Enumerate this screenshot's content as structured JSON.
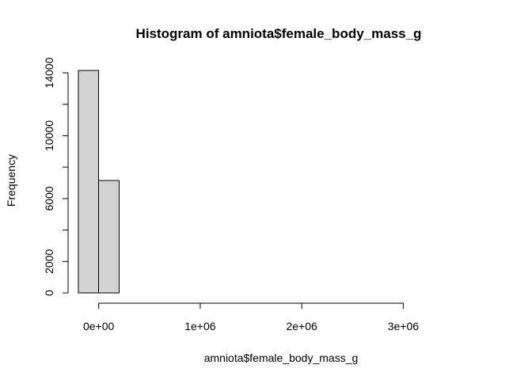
{
  "chart_data": {
    "type": "bar",
    "title": "Histogram of amniota$female_body_mass_g",
    "xlabel": "amniota$female_body_mass_g",
    "ylabel": "Frequency",
    "bins": [
      {
        "start": -200000,
        "end": 0,
        "count": 14150
      },
      {
        "start": 0,
        "end": 200000,
        "count": 7150
      },
      {
        "start": 200000,
        "end": 400000,
        "count": 0
      },
      {
        "start": 400000,
        "end": 600000,
        "count": 0
      },
      {
        "start": 600000,
        "end": 800000,
        "count": 0
      },
      {
        "start": 800000,
        "end": 1000000,
        "count": 0
      },
      {
        "start": 1000000,
        "end": 1200000,
        "count": 0
      },
      {
        "start": 1200000,
        "end": 1400000,
        "count": 0
      },
      {
        "start": 1400000,
        "end": 1600000,
        "count": 0
      },
      {
        "start": 1600000,
        "end": 1800000,
        "count": 0
      },
      {
        "start": 1800000,
        "end": 2000000,
        "count": 0
      },
      {
        "start": 2000000,
        "end": 2200000,
        "count": 0
      },
      {
        "start": 2200000,
        "end": 2400000,
        "count": 0
      },
      {
        "start": 2400000,
        "end": 2600000,
        "count": 0
      },
      {
        "start": 2600000,
        "end": 2800000,
        "count": 0
      },
      {
        "start": 2800000,
        "end": 3000000,
        "count": 0
      },
      {
        "start": 3000000,
        "end": 3200000,
        "count": 0
      },
      {
        "start": 3200000,
        "end": 3400000,
        "count": 0
      },
      {
        "start": 3400000,
        "end": 3600000,
        "count": 0
      },
      {
        "start": 3600000,
        "end": 3800000,
        "count": 0
      }
    ],
    "xlim": [
      -200000,
      3800000
    ],
    "ylim": [
      0,
      14150
    ],
    "x_ticks": [
      {
        "value": 0,
        "label": "0e+00"
      },
      {
        "value": 1000000,
        "label": "1e+06"
      },
      {
        "value": 2000000,
        "label": "2e+06"
      },
      {
        "value": 3000000,
        "label": "3e+06"
      }
    ],
    "y_ticks": [
      {
        "value": 0,
        "label": "0"
      },
      {
        "value": 2000,
        "label": "2000"
      },
      {
        "value": 4000,
        "label": ""
      },
      {
        "value": 6000,
        "label": "6000"
      },
      {
        "value": 8000,
        "label": ""
      },
      {
        "value": 10000,
        "label": "10000"
      },
      {
        "value": 12000,
        "label": ""
      },
      {
        "value": 14000,
        "label": "14000"
      }
    ],
    "bar_fill": "#d3d3d3",
    "bar_stroke": "#000000",
    "grid": false,
    "legend": "none"
  }
}
